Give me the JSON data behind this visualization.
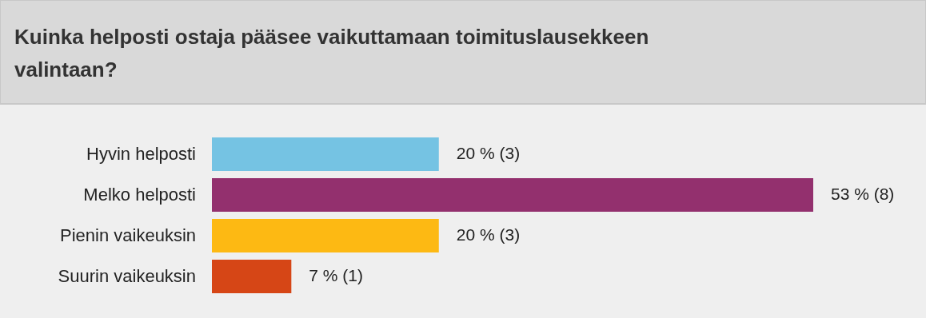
{
  "chart_data": {
    "type": "bar",
    "orientation": "horizontal",
    "title": "Kuinka helposti ostaja pääsee vaikuttamaan toimituslausekkeen valintaan?",
    "categories": [
      "Hyvin helposti",
      "Melko helposti",
      "Pienin vaikeuksin",
      "Suurin vaikeuksin"
    ],
    "values": [
      20,
      53,
      20,
      7
    ],
    "colors": [
      "#75c3e3",
      "#93306e",
      "#fdb913",
      "#d64616"
    ],
    "value_labels": [
      "20 % (3)",
      "53 % (8)",
      "20 % (3)",
      "7 % (1)"
    ]
  }
}
